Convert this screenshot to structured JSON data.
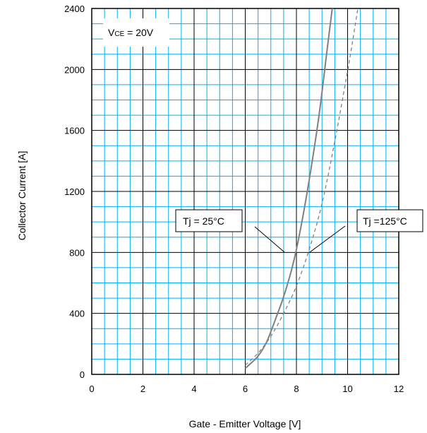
{
  "chart_data": {
    "type": "line",
    "xlabel": "Gate - Emitter Voltage [V]",
    "ylabel": "Collector Current [A]",
    "xlim": [
      0,
      12
    ],
    "ylim": [
      0,
      2400
    ],
    "x_ticks": [
      "0",
      "2",
      "4",
      "6",
      "8",
      "10",
      "12"
    ],
    "y_ticks": [
      "0",
      "400",
      "800",
      "1200",
      "1600",
      "2000",
      "2400"
    ],
    "grid": true,
    "grid_color": "#00b0f0",
    "series": [
      {
        "name": "Tj = 25°C",
        "style": "solid",
        "color": "#808080",
        "x": [
          6.0,
          6.2,
          6.5,
          6.8,
          7.0,
          7.2,
          7.5,
          7.8,
          8.0,
          8.3,
          8.6,
          8.9,
          9.2,
          9.4
        ],
        "y": [
          40,
          70,
          120,
          200,
          280,
          370,
          510,
          680,
          820,
          1080,
          1380,
          1720,
          2130,
          2400
        ]
      },
      {
        "name": "Tj =125°C",
        "style": "dashed",
        "color": "#808080",
        "x": [
          6.0,
          6.5,
          7.0,
          7.5,
          8.0,
          8.5,
          9.0,
          9.5,
          10.0,
          10.2,
          10.4
        ],
        "y": [
          60,
          140,
          250,
          400,
          580,
          820,
          1120,
          1530,
          1990,
          2190,
          2400
        ]
      }
    ],
    "annotations": {
      "vce": {
        "main": "V",
        "sub": "CE",
        "rest": " = 20V"
      },
      "tj25": "Tj = 25°C",
      "tj125": "Tj =125°C"
    }
  }
}
